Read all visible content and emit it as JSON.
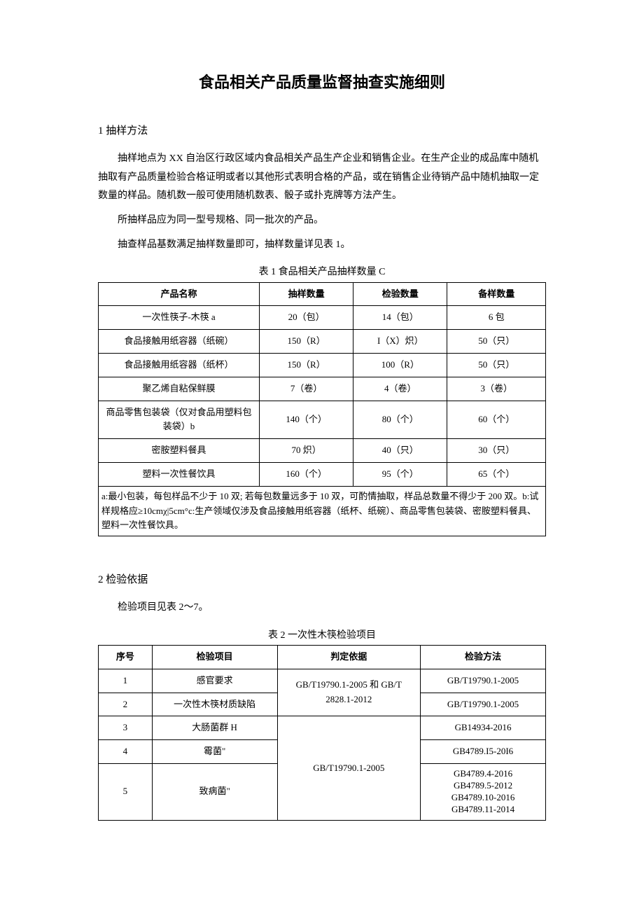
{
  "title": "食品相关产品质量监督抽查实施细则",
  "section1": {
    "heading": "1 抽样方法",
    "para1": "抽样地点为 XX 自治区行政区域内食品相关产品生产企业和销售企业。在生产企业的成品库中随机抽取有产品质量检验合格证明或者以其他形式表明合格的产品，或在销售企业待销产品中随机抽取一定数量的样品。随机数一般可使用随机数表、骰子或扑克牌等方法产生。",
    "para2": "所抽样品应为同一型号规格、同一批次的产品。",
    "para3": "抽查样品基数满足抽样数量即可，抽样数量详见表 1。"
  },
  "table1": {
    "caption": "表 1 食品相关产品抽样数量 C",
    "headers": [
      "产品名称",
      "抽样数量",
      "检验数量",
      "备样数量"
    ],
    "rows": [
      [
        "一次性筷子-木筷 a",
        "20（包）",
        "14（包）",
        "6 包"
      ],
      [
        "食品接触用纸容器（纸碗）",
        "150（R）",
        "I（X）炽）",
        "50（只）"
      ],
      [
        "食品接触用纸容器（纸杯）",
        "150（R）",
        "100（R）",
        "50（只）"
      ],
      [
        "聚乙烯自粘保鲜膜",
        "7（卷）",
        "4（卷）",
        "3（卷）"
      ],
      [
        "商品零售包装袋（仅对食品用塑料包装袋）b",
        "140（个）",
        "80（个）",
        "60（个）"
      ],
      [
        "密胺塑料餐具",
        "70 炽）",
        "40（只）",
        "30（只）"
      ],
      [
        "塑料一次性餐饮具",
        "160（个）",
        "95（个）",
        "65（个）"
      ]
    ],
    "notes": "a:最小包装，每包样品不少于 10 双; 若每包数量远多于 10 双，可酌情抽取，样品总数量不得少于 200 双。b:试样规格应≥10cmχ|5cm°c:生产领域仅涉及食品接触用纸容器（纸杯、纸碗）、商品零售包装袋、密胺塑料餐具、塑料一次性餐饮具。"
  },
  "section2": {
    "heading": "2 检验依据",
    "para1": "检验项目见表 2～7。"
  },
  "table2": {
    "caption": "表 2 一次性木筷检验项目",
    "headers": [
      "序号",
      "检验项目",
      "判定依据",
      "检验方法"
    ],
    "rows": [
      {
        "no": "1",
        "item": "感官要求",
        "method": "GB/T19790.1-2005"
      },
      {
        "no": "2",
        "item": "一次性木筷材质缺陷",
        "method": "GB/T19790.1-2005"
      },
      {
        "no": "3",
        "item": "大肠菌群 H",
        "method": "GB14934-2016"
      },
      {
        "no": "4",
        "item": "霉菌\"",
        "method": "GB4789.I5-20I6"
      },
      {
        "no": "5",
        "item": "致病菌\"",
        "method": "GB4789.4-2016\nGB4789.5-2012\nGB4789.10-2016\nGB4789.11-2014"
      }
    ],
    "basis1": "GB/T19790.1-2005 和 GB/T 2828.1-2012",
    "basis2": "GB/T19790.1-2005"
  }
}
